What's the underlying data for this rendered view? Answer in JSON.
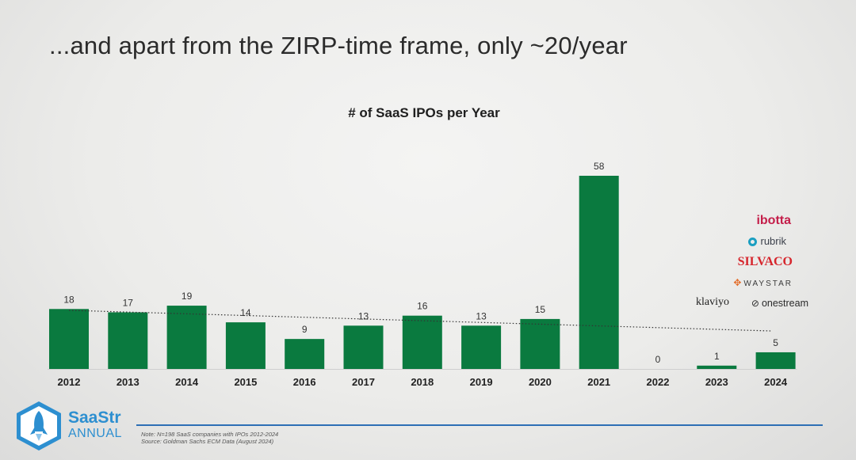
{
  "slide": {
    "title": "...and apart from the ZIRP-time frame, only ~20/year"
  },
  "chart_data": {
    "type": "bar",
    "title": "# of SaaS IPOs per Year",
    "categories": [
      "2012",
      "2013",
      "2014",
      "2015",
      "2016",
      "2017",
      "2018",
      "2019",
      "2020",
      "2021",
      "2022",
      "2023",
      "2024"
    ],
    "values": [
      18,
      17,
      19,
      14,
      9,
      13,
      16,
      13,
      15,
      58,
      0,
      1,
      5
    ],
    "data_labels": [
      "18",
      "17",
      "19",
      "14",
      "9",
      "13",
      "16",
      "13",
      "15",
      "58",
      "0",
      "1",
      "5"
    ],
    "ylim": [
      0,
      58
    ],
    "bar_color": "#0a7a3f",
    "trendline": {
      "style": "dotted",
      "from_value": 17.6,
      "to_value": 11.4
    },
    "grid": false,
    "legend": "none"
  },
  "logos": {
    "ibotta": "ibotta",
    "rubrik": "rubrik",
    "silvaco": "SILVACO",
    "waystar": "WAYSTAR",
    "klaviyo": "klaviyo",
    "onestream": "onestream"
  },
  "branding": {
    "name": "SaaStr",
    "sub": "ANNUAL",
    "color": "#2d8fd0"
  },
  "footer": {
    "note": "Note: N=198 SaaS companies with IPOs 2012-2024",
    "source": "Source: Goldman Sachs ECM Data (August 2024)"
  }
}
